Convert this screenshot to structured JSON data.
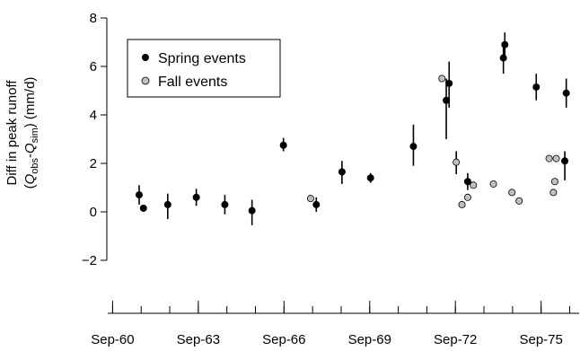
{
  "chart_data": {
    "type": "scatter",
    "ylabel_line1": "Diff in peak runoff",
    "ylabel_line2": {
      "open": "(",
      "q1": "Q",
      "sub1": "obs",
      "minus": "-",
      "q2": "Q",
      "sub2": "sim",
      "close": ") (mm/d)"
    },
    "ylim": [
      -2,
      8
    ],
    "yticks": [
      {
        "v": -2,
        "label": "−2"
      },
      {
        "v": 0,
        "label": "0"
      },
      {
        "v": 2,
        "label": "2"
      },
      {
        "v": 4,
        "label": "4"
      },
      {
        "v": 6,
        "label": "6"
      },
      {
        "v": 8,
        "label": "8"
      }
    ],
    "xlim": [
      1960.5,
      1977.0
    ],
    "xticks_major": [
      {
        "v": 1960.67,
        "label": "Sep-60"
      },
      {
        "v": 1963.67,
        "label": "Sep-63"
      },
      {
        "v": 1966.67,
        "label": "Sep-66"
      },
      {
        "v": 1969.67,
        "label": "Sep-69"
      },
      {
        "v": 1972.67,
        "label": "Sep-72"
      },
      {
        "v": 1975.67,
        "label": "Sep-75"
      }
    ],
    "xticks_minor_step": 1,
    "legend_position": "top-left",
    "series": [
      {
        "name": "Spring events",
        "marker": "filled",
        "color": "#000000",
        "points": [
          {
            "x": 1961.6,
            "y": 0.7,
            "lo": 0.3,
            "hi": 1.1
          },
          {
            "x": 1961.75,
            "y": 0.15
          },
          {
            "x": 1962.6,
            "y": 0.3,
            "lo": -0.3,
            "hi": 0.75
          },
          {
            "x": 1963.6,
            "y": 0.6,
            "lo": 0.25,
            "hi": 0.95
          },
          {
            "x": 1964.6,
            "y": 0.3,
            "lo": -0.1,
            "hi": 0.7
          },
          {
            "x": 1965.55,
            "y": 0.05,
            "lo": -0.55,
            "hi": 0.5
          },
          {
            "x": 1966.65,
            "y": 2.75,
            "lo": 2.5,
            "hi": 3.05
          },
          {
            "x": 1967.8,
            "y": 0.3,
            "lo": 0.0,
            "hi": 0.6
          },
          {
            "x": 1968.7,
            "y": 1.65,
            "lo": 1.15,
            "hi": 2.1
          },
          {
            "x": 1969.7,
            "y": 1.4,
            "lo": 1.2,
            "hi": 1.6
          },
          {
            "x": 1971.2,
            "y": 2.7,
            "lo": 1.9,
            "hi": 3.6
          },
          {
            "x": 1972.35,
            "y": 4.6,
            "lo": 3.0,
            "hi": 5.5
          },
          {
            "x": 1972.45,
            "y": 5.3,
            "lo": 4.3,
            "hi": 6.2
          },
          {
            "x": 1973.1,
            "y": 1.25,
            "lo": 0.9,
            "hi": 1.6
          },
          {
            "x": 1974.35,
            "y": 6.35,
            "lo": 5.7,
            "hi": 6.9
          },
          {
            "x": 1974.4,
            "y": 6.9,
            "lo": 6.4,
            "hi": 7.4
          },
          {
            "x": 1975.5,
            "y": 5.15,
            "lo": 4.6,
            "hi": 5.7
          },
          {
            "x": 1976.5,
            "y": 2.1,
            "lo": 1.3,
            "hi": 2.5
          },
          {
            "x": 1976.55,
            "y": 4.9,
            "lo": 4.3,
            "hi": 5.5
          }
        ]
      },
      {
        "name": "Fall events",
        "marker": "hollow-gray",
        "color": "#c0c0c0",
        "points": [
          {
            "x": 1967.6,
            "y": 0.55
          },
          {
            "x": 1972.2,
            "y": 5.5
          },
          {
            "x": 1972.7,
            "y": 2.05,
            "lo": 1.55,
            "hi": 2.5
          },
          {
            "x": 1972.9,
            "y": 0.3
          },
          {
            "x": 1973.1,
            "y": 0.6
          },
          {
            "x": 1973.3,
            "y": 1.1
          },
          {
            "x": 1974.0,
            "y": 1.15
          },
          {
            "x": 1974.65,
            "y": 0.8
          },
          {
            "x": 1974.9,
            "y": 0.45
          },
          {
            "x": 1975.95,
            "y": 2.2
          },
          {
            "x": 1976.1,
            "y": 0.8
          },
          {
            "x": 1976.15,
            "y": 1.25
          },
          {
            "x": 1976.2,
            "y": 2.2
          }
        ]
      }
    ]
  }
}
